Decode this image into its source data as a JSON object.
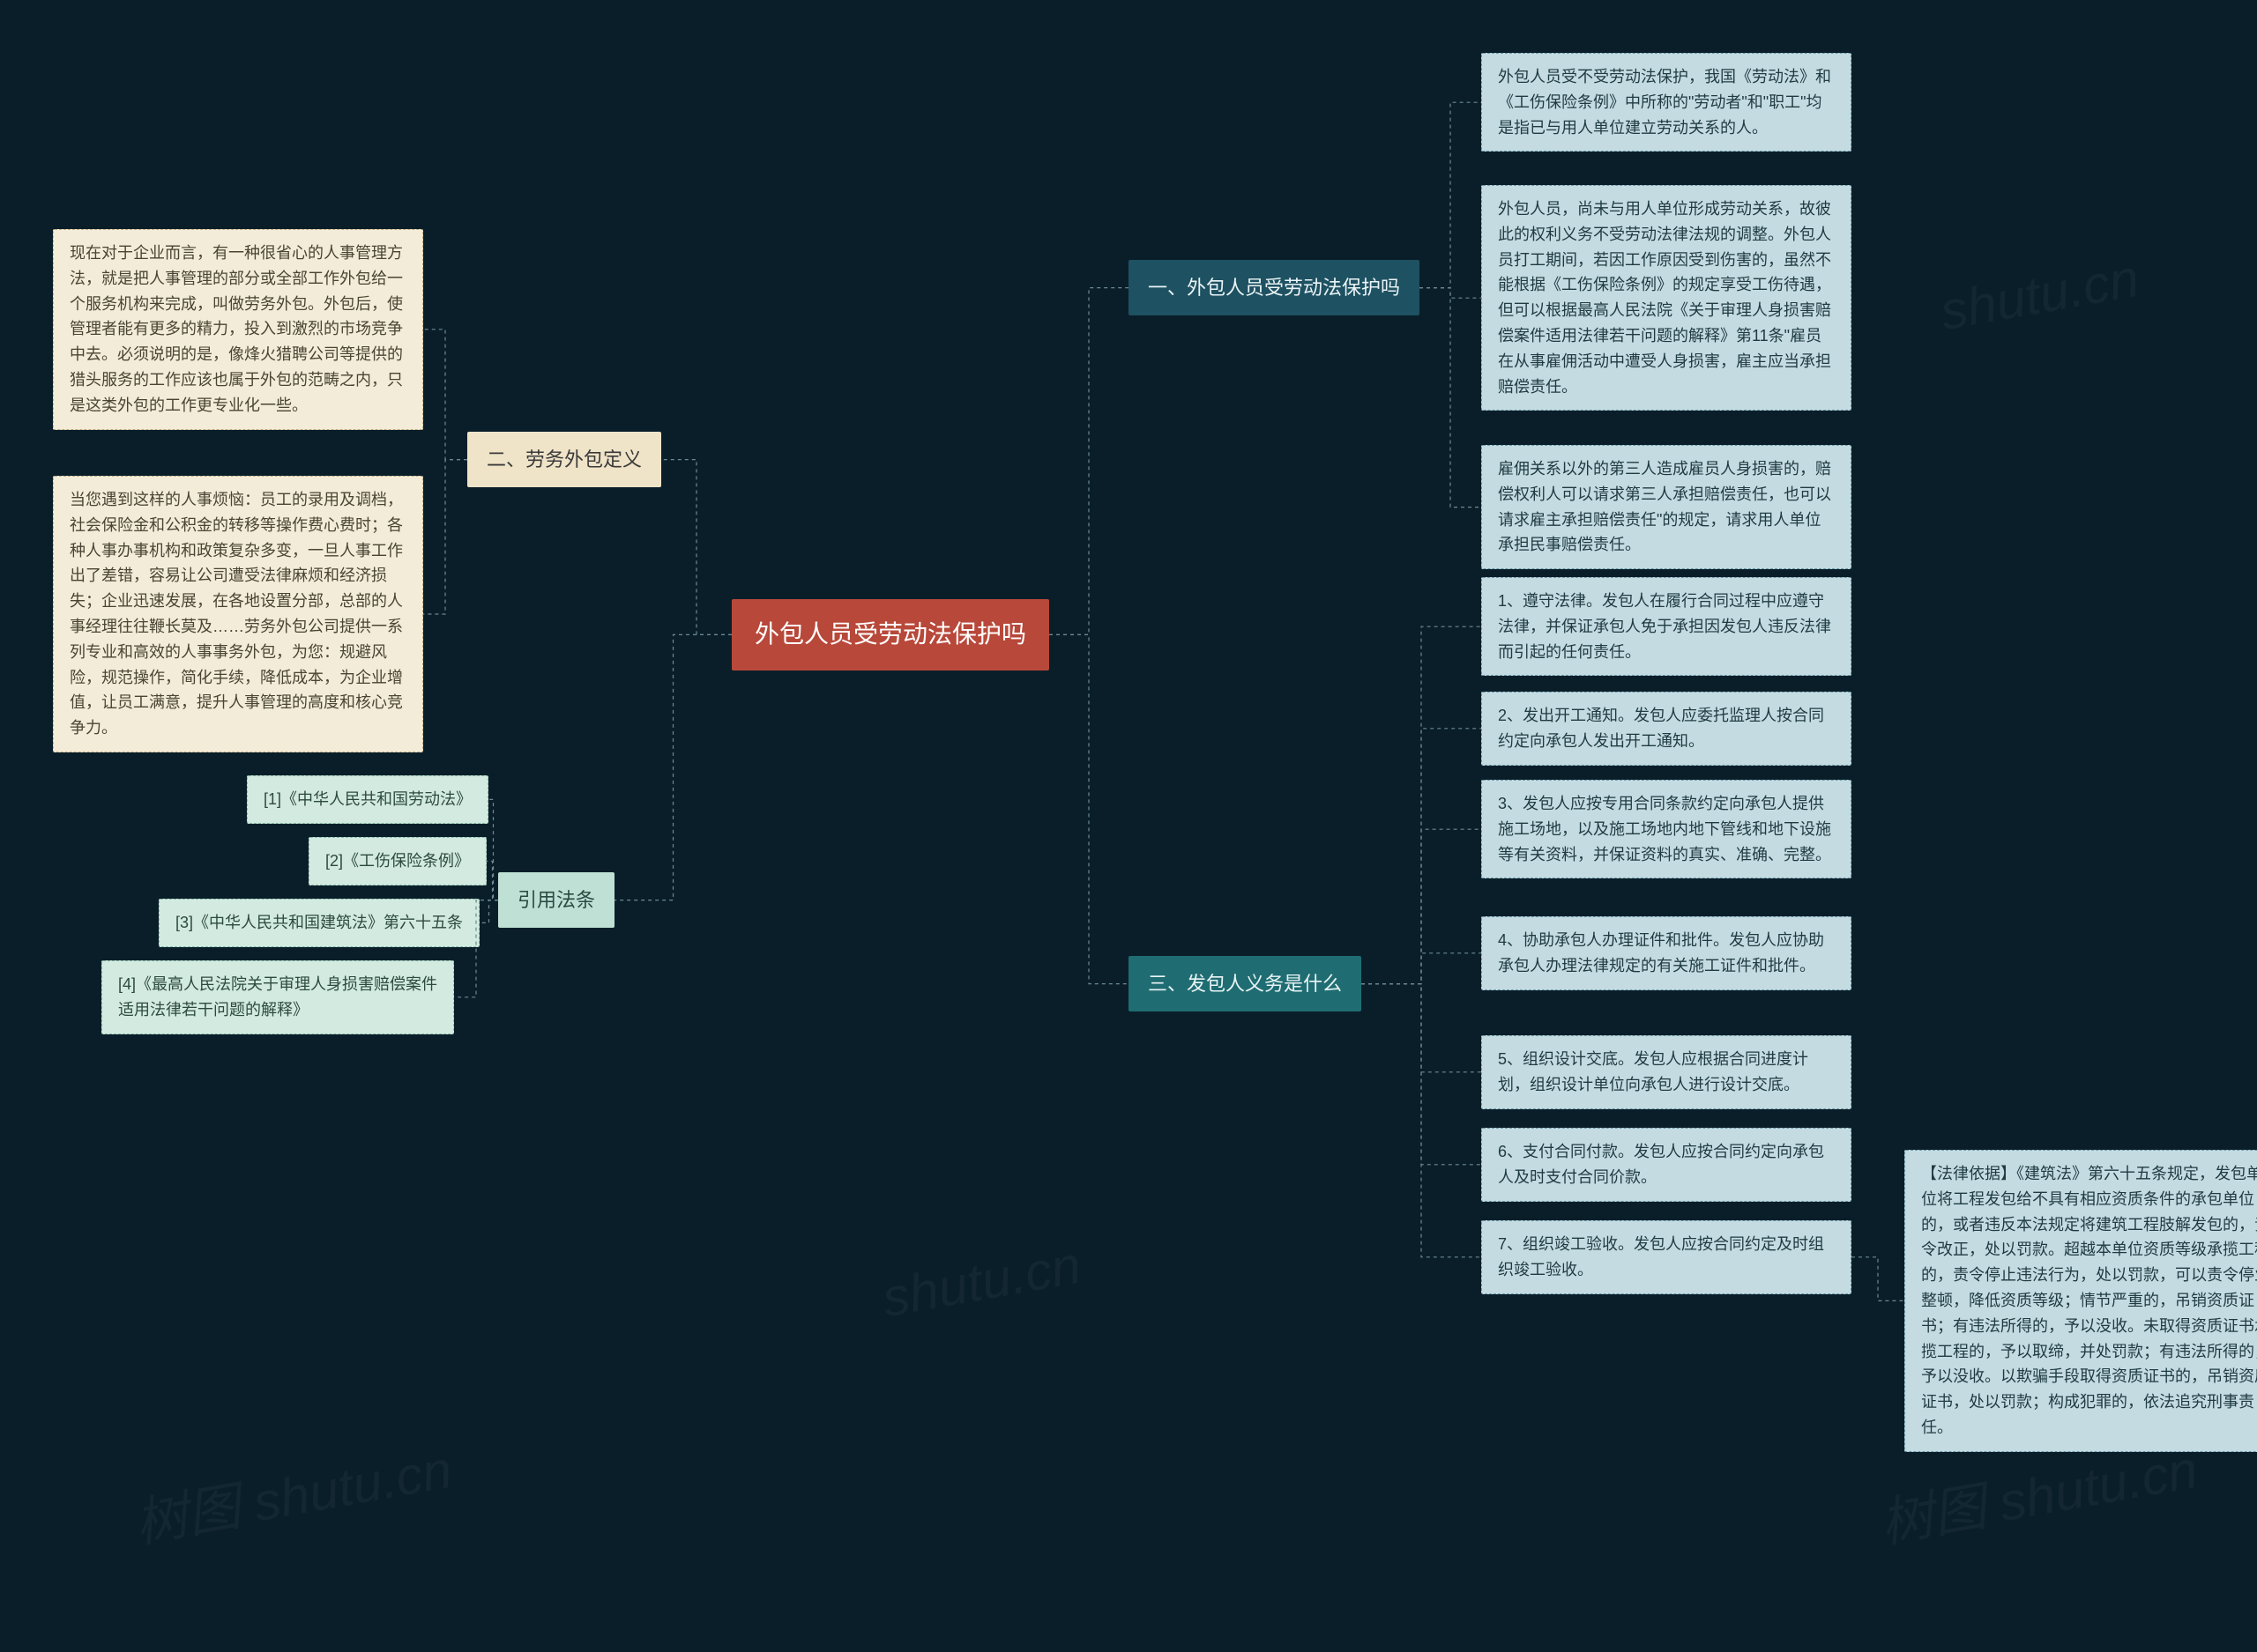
{
  "colors": {
    "background": "#0a1e2a",
    "root_bg": "#b8483a",
    "branch1_bg": "#1e5161",
    "branch2_bg": "#efe3c8",
    "branch3_bg": "#1f6d72",
    "branch4_bg": "#bfe0d4",
    "leaf_blue_bg": "#c4dbe1",
    "leaf_cream_bg": "#f3ecd9",
    "leaf_mint_bg": "#d3eae0",
    "connector": "#6b8a92"
  },
  "watermarks": [
    "树图 shutu.cn",
    "shutu.cn",
    "shutu.cn",
    "树图 shutu.cn"
  ],
  "root": "外包人员受劳动法保护吗",
  "branches": {
    "s1": {
      "label": "一、外包人员受劳动法保护吗",
      "leaves": [
        "外包人员受不受劳动法保护，我国《劳动法》和《工伤保险条例》中所称的\"劳动者\"和\"职工\"均是指已与用人单位建立劳动关系的人。",
        "外包人员，尚未与用人单位形成劳动关系，故彼此的权利义务不受劳动法律法规的调整。外包人员打工期间，若因工作原因受到伤害的，虽然不能根据《工伤保险条例》的规定享受工伤待遇，但可以根据最高人民法院《关于审理人身损害赔偿案件适用法律若干问题的解释》第11条\"雇员在从事雇佣活动中遭受人身损害，雇主应当承担赔偿责任。",
        "雇佣关系以外的第三人造成雇员人身损害的，赔偿权利人可以请求第三人承担赔偿责任，也可以请求雇主承担赔偿责任\"的规定，请求用人单位承担民事赔偿责任。"
      ]
    },
    "s2": {
      "label": "二、劳务外包定义",
      "leaves": [
        "现在对于企业而言，有一种很省心的人事管理方法，就是把人事管理的部分或全部工作外包给一个服务机构来完成，叫做劳务外包。外包后，使管理者能有更多的精力，投入到激烈的市场竞争中去。必须说明的是，像烽火猎聘公司等提供的猎头服务的工作应该也属于外包的范畴之内，只是这类外包的工作更专业化一些。",
        "当您遇到这样的人事烦恼：员工的录用及调档，社会保险金和公积金的转移等操作费心费时；各种人事办事机构和政策复杂多变，一旦人事工作出了差错，容易让公司遭受法律麻烦和经济损失；企业迅速发展，在各地设置分部，总部的人事经理往往鞭长莫及……劳务外包公司提供一系列专业和高效的人事事务外包，为您：规避风险，规范操作，简化手续，降低成本，为企业增值，让员工满意，提升人事管理的高度和核心竞争力。"
      ]
    },
    "s3": {
      "label": "三、发包人义务是什么",
      "leaves": [
        "1、遵守法律。发包人在履行合同过程中应遵守法律，并保证承包人免于承担因发包人违反法律而引起的任何责任。",
        "2、发出开工通知。发包人应委托监理人按合同约定向承包人发出开工通知。",
        "3、发包人应按专用合同条款约定向承包人提供施工场地，以及施工场地内地下管线和地下设施等有关资料，并保证资料的真实、准确、完整。",
        "4、协助承包人办理证件和批件。发包人应协助承包人办理法律规定的有关施工证件和批件。",
        "5、组织设计交底。发包人应根据合同进度计划，组织设计单位向承包人进行设计交底。",
        "6、支付合同付款。发包人应按合同约定向承包人及时支付合同价款。",
        "7、组织竣工验收。发包人应按合同约定及时组织竣工验收。"
      ],
      "subleaf": "【法律依据】《建筑法》第六十五条规定，发包单位将工程发包给不具有相应资质条件的承包单位的，或者违反本法规定将建筑工程肢解发包的，责令改正，处以罚款。超越本单位资质等级承揽工程的，责令停止违法行为，处以罚款，可以责令停业整顿，降低资质等级；情节严重的，吊销资质证书；有违法所得的，予以没收。未取得资质证书承揽工程的，予以取缔，并处罚款；有违法所得的，予以没收。以欺骗手段取得资质证书的，吊销资质证书，处以罚款；构成犯罪的，依法追究刑事责任。"
    },
    "s4": {
      "label": "引用法条",
      "leaves": [
        "[1]《中华人民共和国劳动法》",
        "[2]《工伤保险条例》",
        "[3]《中华人民共和国建筑法》第六十五条",
        "[4]《最高人民法院关于审理人身损害赔偿案件适用法律若干问题的解释》"
      ]
    }
  }
}
